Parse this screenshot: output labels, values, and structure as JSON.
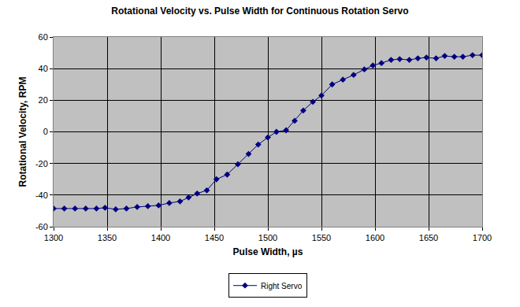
{
  "chart_data": {
    "type": "line",
    "title": "Rotational Velocity vs. Pulse Width for Continuous Rotation Servo",
    "x_label": "Pulse Width, µs",
    "y_label": "Rotational Velocity, RPM",
    "x": [
      1300,
      1310,
      1320,
      1330,
      1340,
      1348,
      1358,
      1368,
      1378,
      1388,
      1398,
      1408,
      1418,
      1426,
      1434,
      1443,
      1452,
      1462,
      1472,
      1482,
      1491,
      1500,
      1508,
      1517,
      1525,
      1533,
      1542,
      1550,
      1560,
      1570,
      1580,
      1590,
      1598,
      1606,
      1615,
      1623,
      1632,
      1640,
      1648,
      1657,
      1665,
      1674,
      1682,
      1691,
      1700
    ],
    "series": [
      {
        "name": "Right Servo",
        "color": "#000080",
        "marker": "diamond",
        "line_style": "solid",
        "values": [
          -48.5,
          -48.5,
          -48.5,
          -48.5,
          -48.5,
          -48,
          -49,
          -48.5,
          -47.5,
          -47,
          -46.5,
          -45,
          -44,
          -41.5,
          -39,
          -37,
          -30,
          -27,
          -20.5,
          -14,
          -8,
          -3.5,
          0,
          1,
          7,
          13.5,
          19,
          23,
          30,
          33,
          36,
          39.5,
          42,
          43.5,
          45.5,
          46,
          45.5,
          46.5,
          47,
          46.5,
          48,
          47.5,
          47.5,
          48.5,
          48.5
        ]
      }
    ],
    "xlim": [
      1300,
      1700
    ],
    "xticks": [
      1300,
      1350,
      1400,
      1450,
      1500,
      1550,
      1600,
      1650,
      1700
    ],
    "ylim": [
      -60,
      60
    ],
    "yticks": [
      -60,
      -40,
      -20,
      0,
      20,
      40,
      60
    ],
    "grid": true,
    "legend": "bottom"
  }
}
